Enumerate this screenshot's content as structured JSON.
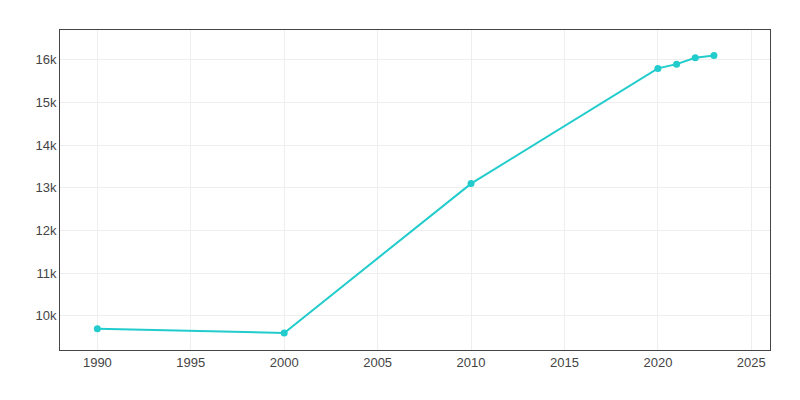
{
  "chart_data": {
    "type": "line",
    "x": [
      1990,
      2000,
      2010,
      2020,
      2021,
      2022,
      2023
    ],
    "values": [
      9700,
      9600,
      13100,
      15800,
      15900,
      16050,
      16100
    ],
    "color": "#22CCCC",
    "marker": "circle",
    "xlim": [
      1988,
      2026
    ],
    "ylim": [
      9200,
      16700
    ],
    "xticks": [
      1990,
      1995,
      2000,
      2005,
      2010,
      2015,
      2020,
      2025
    ],
    "yticks": [
      {
        "value": 10000,
        "label": "10k"
      },
      {
        "value": 11000,
        "label": "11k"
      },
      {
        "value": 12000,
        "label": "12k"
      },
      {
        "value": 13000,
        "label": "13k"
      },
      {
        "value": 14000,
        "label": "14k"
      },
      {
        "value": 15000,
        "label": "15k"
      },
      {
        "value": 16000,
        "label": "16k"
      }
    ],
    "grid": true
  }
}
